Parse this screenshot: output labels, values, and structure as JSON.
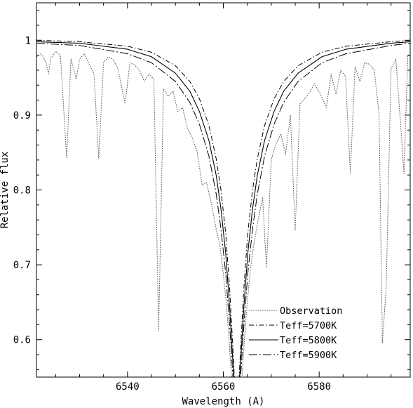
{
  "chart_data": {
    "type": "line",
    "title": "",
    "xlabel": "Wavelength (A)",
    "ylabel": "Relative flux",
    "xlim": [
      6521,
      6599
    ],
    "ylim": [
      0.55,
      1.05
    ],
    "x_ticks": [
      6540,
      6560,
      6580
    ],
    "y_ticks": [
      0.6,
      0.7,
      0.8,
      0.9,
      1
    ],
    "x_tick_labels": [
      "6540",
      "6560",
      "6580"
    ],
    "y_tick_labels": [
      "0.6",
      "0.7",
      "0.8",
      "0.9",
      "1"
    ],
    "line_center": 6562.8,
    "grid": false,
    "legend_position": "bottom-right",
    "series": [
      {
        "name": "Observation",
        "style": "dotted",
        "color": "#555555",
        "points": [
          [
            6521,
            0.978
          ],
          [
            6522,
            0.982
          ],
          [
            6523,
            0.97
          ],
          [
            6523.5,
            0.955
          ],
          [
            6524,
            0.976
          ],
          [
            6525,
            0.985
          ],
          [
            6526,
            0.98
          ],
          [
            6527.3,
            0.843
          ],
          [
            6528.2,
            0.975
          ],
          [
            6529.3,
            0.948
          ],
          [
            6530,
            0.975
          ],
          [
            6531,
            0.982
          ],
          [
            6532,
            0.968
          ],
          [
            6533,
            0.955
          ],
          [
            6534,
            0.842
          ],
          [
            6535,
            0.97
          ],
          [
            6536,
            0.978
          ],
          [
            6537,
            0.974
          ],
          [
            6538,
            0.962
          ],
          [
            6539.5,
            0.915
          ],
          [
            6540.5,
            0.97
          ],
          [
            6541.5,
            0.967
          ],
          [
            6542.5,
            0.96
          ],
          [
            6543.5,
            0.945
          ],
          [
            6544.5,
            0.955
          ],
          [
            6545.5,
            0.948
          ],
          [
            6546.5,
            0.612
          ],
          [
            6547.5,
            0.935
          ],
          [
            6548.5,
            0.925
          ],
          [
            6549.5,
            0.932
          ],
          [
            6550.5,
            0.905
          ],
          [
            6551.5,
            0.91
          ],
          [
            6552.5,
            0.882
          ],
          [
            6553.5,
            0.87
          ],
          [
            6554.5,
            0.852
          ],
          [
            6555.6,
            0.806
          ],
          [
            6556.5,
            0.81
          ],
          [
            6557.5,
            0.782
          ],
          [
            6558.5,
            0.748
          ],
          [
            6559.3,
            0.725
          ],
          [
            6560.0,
            0.688
          ],
          [
            6560.6,
            0.65
          ],
          [
            6561.2,
            0.6
          ],
          [
            6561.7,
            0.55
          ],
          [
            6563.9,
            0.55
          ],
          [
            6564.4,
            0.6
          ],
          [
            6565.0,
            0.65
          ],
          [
            6565.6,
            0.69
          ],
          [
            6566.3,
            0.725
          ],
          [
            6567.2,
            0.758
          ],
          [
            6568.2,
            0.79
          ],
          [
            6569.0,
            0.696
          ],
          [
            6570.0,
            0.84
          ],
          [
            6571.0,
            0.862
          ],
          [
            6572.0,
            0.875
          ],
          [
            6573.0,
            0.848
          ],
          [
            6574.0,
            0.9
          ],
          [
            6575.0,
            0.746
          ],
          [
            6576.0,
            0.915
          ],
          [
            6577.0,
            0.922
          ],
          [
            6578.0,
            0.93
          ],
          [
            6579.0,
            0.942
          ],
          [
            6580.5,
            0.925
          ],
          [
            6581.5,
            0.91
          ],
          [
            6582.5,
            0.955
          ],
          [
            6583.5,
            0.928
          ],
          [
            6584.5,
            0.96
          ],
          [
            6585.5,
            0.952
          ],
          [
            6586.5,
            0.822
          ],
          [
            6587.5,
            0.965
          ],
          [
            6588.5,
            0.945
          ],
          [
            6589.5,
            0.97
          ],
          [
            6590.5,
            0.968
          ],
          [
            6591.5,
            0.96
          ],
          [
            6592.5,
            0.902
          ],
          [
            6593.2,
            0.595
          ],
          [
            6594.0,
            0.672
          ],
          [
            6595.0,
            0.962
          ],
          [
            6596.0,
            0.975
          ],
          [
            6597.0,
            0.888
          ],
          [
            6597.7,
            0.822
          ],
          [
            6598.5,
            0.98
          ],
          [
            6599,
            0.978
          ]
        ]
      },
      {
        "name": "Teff=5700K",
        "style": "dash-dot",
        "color": "#000000",
        "points": [
          [
            6521,
            1.0
          ],
          [
            6530,
            0.998
          ],
          [
            6540,
            0.992
          ],
          [
            6545,
            0.984
          ],
          [
            6550,
            0.966
          ],
          [
            6553,
            0.945
          ],
          [
            6555,
            0.922
          ],
          [
            6557,
            0.886
          ],
          [
            6558.5,
            0.842
          ],
          [
            6559.5,
            0.8
          ],
          [
            6560.5,
            0.742
          ],
          [
            6561.3,
            0.67
          ],
          [
            6561.9,
            0.6
          ],
          [
            6562.3,
            0.55
          ],
          [
            6563.3,
            0.55
          ],
          [
            6563.7,
            0.6
          ],
          [
            6564.3,
            0.67
          ],
          [
            6565.1,
            0.742
          ],
          [
            6566.1,
            0.8
          ],
          [
            6567.1,
            0.842
          ],
          [
            6568.6,
            0.886
          ],
          [
            6570.6,
            0.922
          ],
          [
            6572.6,
            0.945
          ],
          [
            6575.6,
            0.966
          ],
          [
            6580.6,
            0.984
          ],
          [
            6585.6,
            0.992
          ],
          [
            6595,
            0.998
          ],
          [
            6599,
            1.0
          ]
        ]
      },
      {
        "name": "Teff=5800K",
        "style": "solid",
        "color": "#000000",
        "points": [
          [
            6521,
            0.998
          ],
          [
            6530,
            0.996
          ],
          [
            6540,
            0.988
          ],
          [
            6545,
            0.978
          ],
          [
            6550,
            0.956
          ],
          [
            6553,
            0.932
          ],
          [
            6555,
            0.905
          ],
          [
            6557,
            0.866
          ],
          [
            6558.5,
            0.82
          ],
          [
            6559.5,
            0.775
          ],
          [
            6560.5,
            0.715
          ],
          [
            6561.3,
            0.645
          ],
          [
            6561.9,
            0.58
          ],
          [
            6562.2,
            0.55
          ],
          [
            6563.4,
            0.55
          ],
          [
            6563.7,
            0.58
          ],
          [
            6564.3,
            0.645
          ],
          [
            6565.1,
            0.715
          ],
          [
            6566.1,
            0.775
          ],
          [
            6567.1,
            0.82
          ],
          [
            6568.6,
            0.866
          ],
          [
            6570.6,
            0.905
          ],
          [
            6572.6,
            0.932
          ],
          [
            6575.6,
            0.956
          ],
          [
            6580.6,
            0.978
          ],
          [
            6585.6,
            0.988
          ],
          [
            6595,
            0.996
          ],
          [
            6599,
            0.998
          ]
        ]
      },
      {
        "name": "Teff=5900K",
        "style": "long-dash-dot",
        "color": "#000000",
        "points": [
          [
            6521,
            0.996
          ],
          [
            6530,
            0.993
          ],
          [
            6540,
            0.982
          ],
          [
            6545,
            0.97
          ],
          [
            6550,
            0.945
          ],
          [
            6553,
            0.917
          ],
          [
            6555,
            0.888
          ],
          [
            6557,
            0.845
          ],
          [
            6558.5,
            0.795
          ],
          [
            6559.5,
            0.748
          ],
          [
            6560.5,
            0.688
          ],
          [
            6561.3,
            0.62
          ],
          [
            6561.8,
            0.57
          ],
          [
            6562.0,
            0.55
          ],
          [
            6563.6,
            0.55
          ],
          [
            6563.8,
            0.57
          ],
          [
            6564.3,
            0.62
          ],
          [
            6565.1,
            0.688
          ],
          [
            6566.1,
            0.748
          ],
          [
            6567.1,
            0.795
          ],
          [
            6568.6,
            0.845
          ],
          [
            6570.6,
            0.888
          ],
          [
            6572.6,
            0.917
          ],
          [
            6575.6,
            0.945
          ],
          [
            6580.6,
            0.97
          ],
          [
            6585.6,
            0.982
          ],
          [
            6595,
            0.993
          ],
          [
            6599,
            0.996
          ]
        ]
      }
    ]
  }
}
